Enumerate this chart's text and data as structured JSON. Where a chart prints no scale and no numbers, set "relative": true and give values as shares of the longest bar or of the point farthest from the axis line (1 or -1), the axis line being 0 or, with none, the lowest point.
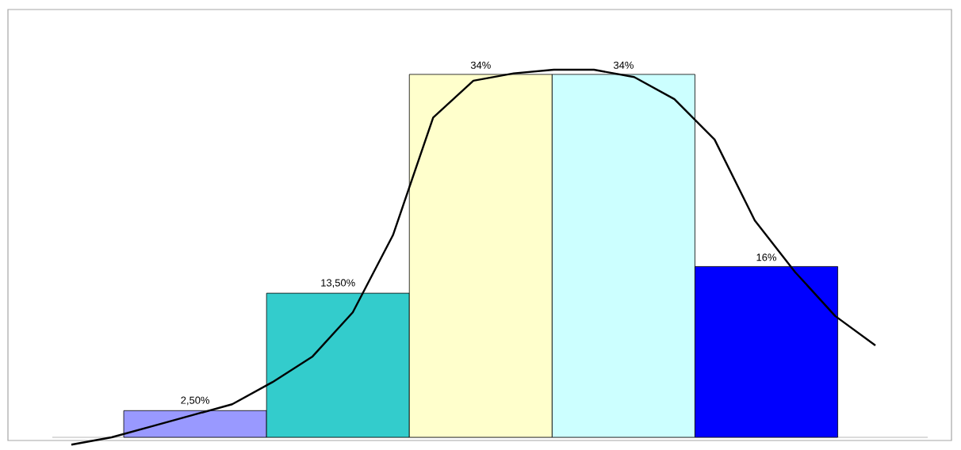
{
  "chart_data": [
    {
      "type": "bar",
      "categories": [
        null,
        null,
        null,
        null,
        null
      ],
      "colors": [
        "#9999ff",
        "#33cccc",
        "#ffffcc",
        "#ccffff",
        "#0000ff"
      ],
      "values": [
        2.5,
        13.5,
        34,
        34,
        16
      ],
      "value_labels": [
        "2,50%",
        "13,50%",
        "34%",
        "34%",
        "16%"
      ]
    },
    {
      "type": "line",
      "relative": true,
      "categories": [
        null,
        null,
        null,
        null,
        null,
        null,
        null,
        null,
        null,
        null,
        null,
        null,
        null,
        null,
        null,
        null,
        null,
        null,
        null,
        null,
        null
      ],
      "series": [
        {
          "color": "#000000",
          "values": [
            -0.02,
            0,
            0.03,
            0.06,
            0.09,
            0.15,
            0.22,
            0.34,
            0.55,
            0.87,
            0.97,
            0.99,
            1,
            1,
            0.98,
            0.92,
            0.81,
            0.59,
            0.45,
            0.33,
            0.25
          ]
        }
      ],
      "marker": "none",
      "line_style": "solid"
    }
  ]
}
